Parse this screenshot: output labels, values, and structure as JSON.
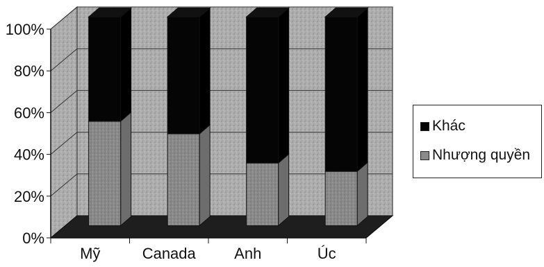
{
  "chart_data": {
    "type": "bar",
    "stacked": true,
    "percent_stacked": true,
    "three_d": true,
    "categories": [
      "Mỹ",
      "Canada",
      "Anh",
      "Úc"
    ],
    "series": [
      {
        "name": "Nhượng quyền",
        "values": [
          50,
          44,
          30,
          26
        ],
        "color": "#8a8a8a"
      },
      {
        "name": "Khác",
        "values": [
          50,
          56,
          70,
          74
        ],
        "color": "#050505"
      }
    ],
    "yticks": [
      "0%",
      "20%",
      "40%",
      "60%",
      "80%",
      "100%"
    ],
    "ylim": [
      0,
      100
    ],
    "grid": true,
    "legend_position": "right",
    "wall_color": "#a9a9a9",
    "floor_color": "#1e1e1e"
  }
}
